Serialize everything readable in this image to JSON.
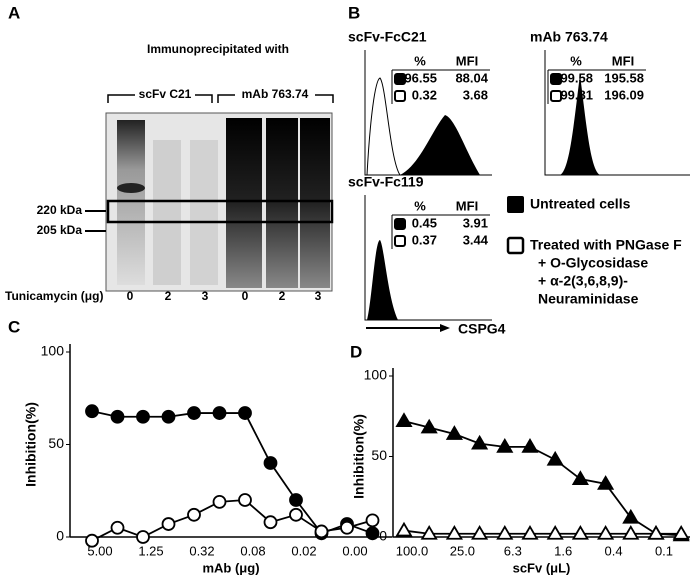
{
  "panel_a": {
    "letter": "A",
    "heading": "Immunoprecipitated with",
    "group_1": "scFv C21",
    "group_2": "mAb 763.74",
    "marker_1": "220 kDa",
    "marker_2": "205 kDa",
    "lane_axis": "Tunicamycin (μg)",
    "lanes": [
      "0",
      "2",
      "3",
      "0",
      "2",
      "3"
    ]
  },
  "panel_b": {
    "letter": "B",
    "x_label": "CSPG4",
    "plots": [
      {
        "title": "scFv-FcC21",
        "header": [
          "%",
          "MFI"
        ],
        "rows": [
          [
            "96.55",
            "88.04"
          ],
          [
            "0.32",
            "3.68"
          ]
        ]
      },
      {
        "title": "mAb 763.74",
        "header": [
          "%",
          "MFI"
        ],
        "rows": [
          [
            "99.58",
            "195.58"
          ],
          [
            "99.81",
            "196.09"
          ]
        ]
      },
      {
        "title": "scFv-Fc119",
        "header": [
          "%",
          "MFI"
        ],
        "rows": [
          [
            "0.45",
            "3.91"
          ],
          [
            "0.37",
            "3.44"
          ]
        ]
      }
    ],
    "legend": [
      "Untreated cells",
      "Treated with PNGase F",
      "+ O-Glycosidase",
      "+ α-2(3,6,8,9)-",
      "Neuraminidase"
    ]
  },
  "chart_data": [
    {
      "type": "line",
      "letter": "C",
      "y_label": "Inhibition(%)",
      "x_label": "mAb (μg)",
      "categories": [
        "5.00",
        null,
        "1.25",
        null,
        "0.32",
        null,
        "0.08",
        null,
        "0.02",
        null,
        "0.00",
        null
      ],
      "ylim": [
        0,
        100
      ],
      "yticks": [
        0,
        50,
        100
      ],
      "marker": "circle",
      "series": [
        {
          "color": "#000000",
          "marker_fill": "#000000",
          "values": [
            68,
            65,
            65,
            65,
            67,
            67,
            67,
            40,
            20,
            2,
            7,
            2
          ]
        },
        {
          "color": "#000000",
          "marker_fill": "#ffffff",
          "values": [
            -2,
            5,
            0,
            7,
            12,
            19,
            20,
            8,
            12,
            3,
            5,
            9
          ]
        }
      ]
    },
    {
      "type": "line",
      "letter": "D",
      "y_label": "Inhibition(%)",
      "x_label": "scFv (μL)",
      "categories": [
        "100.0",
        null,
        "25.0",
        null,
        "6.3",
        null,
        "1.6",
        null,
        "0.4",
        null,
        "0.1",
        null
      ],
      "ylim": [
        0,
        100
      ],
      "yticks": [
        0,
        50,
        100
      ],
      "marker": "triangle",
      "series": [
        {
          "color": "#000000",
          "marker_fill": "#000000",
          "values": [
            72,
            68,
            64,
            58,
            56,
            56,
            48,
            36,
            33,
            12,
            2,
            1
          ]
        },
        {
          "color": "#000000",
          "marker_fill": "#ffffff",
          "values": [
            4,
            2,
            2,
            2,
            2,
            2,
            2,
            2,
            2,
            2,
            2,
            2
          ]
        }
      ]
    }
  ]
}
